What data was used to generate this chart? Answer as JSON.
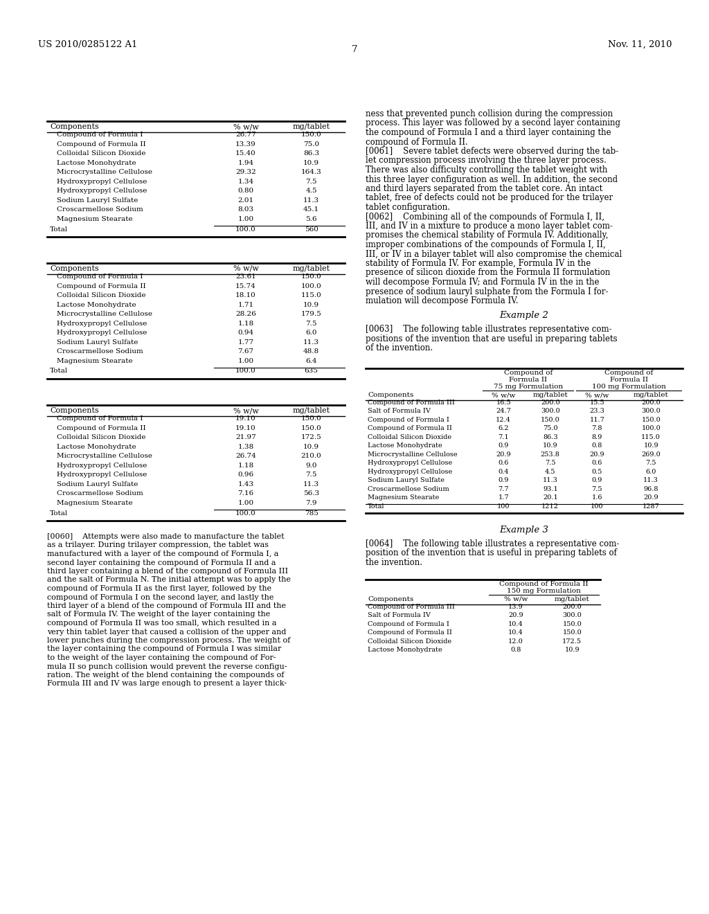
{
  "patent_number": "US 2010/0285122 A1",
  "date": "Nov. 11, 2010",
  "page_number": "7",
  "table1": {
    "headers": [
      "Components",
      "% w/w",
      "mg/tablet"
    ],
    "rows": [
      [
        "Compound of Formula I",
        "26.77",
        "150.0"
      ],
      [
        "Compound of Formula II",
        "13.39",
        "75.0"
      ],
      [
        "Colloidal Silicon Dioxide",
        "15.40",
        "86.3"
      ],
      [
        "Lactose Monohydrate",
        "1.94",
        "10.9"
      ],
      [
        "Microcrystalline Cellulose",
        "29.32",
        "164.3"
      ],
      [
        "Hydroxypropyl Cellulose",
        "1.34",
        "7.5"
      ],
      [
        "Hydroxypropyl Cellulose",
        "0.80",
        "4.5"
      ],
      [
        "Sodium Lauryl Sulfate",
        "2.01",
        "11.3"
      ],
      [
        "Croscarmellose Sodium",
        "8.03",
        "45.1"
      ],
      [
        "Magnesium Stearate",
        "1.00",
        "5.6"
      ]
    ],
    "total_row": [
      "Total",
      "100.0",
      "560"
    ]
  },
  "table2": {
    "headers": [
      "Components",
      "% w/w",
      "mg/tablet"
    ],
    "rows": [
      [
        "Compound of Formula I",
        "23.61",
        "150.0"
      ],
      [
        "Compound of Formula II",
        "15.74",
        "100.0"
      ],
      [
        "Colloidal Silicon Dioxide",
        "18.10",
        "115.0"
      ],
      [
        "Lactose Monohydrate",
        "1.71",
        "10.9"
      ],
      [
        "Microcrystalline Cellulose",
        "28.26",
        "179.5"
      ],
      [
        "Hydroxypropyl Cellulose",
        "1.18",
        "7.5"
      ],
      [
        "Hydroxypropyl Cellulose",
        "0.94",
        "6.0"
      ],
      [
        "Sodium Lauryl Sulfate",
        "1.77",
        "11.3"
      ],
      [
        "Croscarmellose Sodium",
        "7.67",
        "48.8"
      ],
      [
        "Magnesium Stearate",
        "1.00",
        "6.4"
      ]
    ],
    "total_row": [
      "Total",
      "100.0",
      "635"
    ]
  },
  "table3": {
    "headers": [
      "Components",
      "% w/w",
      "mg/tablet"
    ],
    "rows": [
      [
        "Compound of Formula I",
        "19.10",
        "150.0"
      ],
      [
        "Compound of Formula II",
        "19.10",
        "150.0"
      ],
      [
        "Colloidal Silicon Dioxide",
        "21.97",
        "172.5"
      ],
      [
        "Lactose Monohydrate",
        "1.38",
        "10.9"
      ],
      [
        "Microcrystalline Cellulose",
        "26.74",
        "210.0"
      ],
      [
        "Hydroxypropyl Cellulose",
        "1.18",
        "9.0"
      ],
      [
        "Hydroxypropyl Cellulose",
        "0.96",
        "7.5"
      ],
      [
        "Sodium Lauryl Sulfate",
        "1.43",
        "11.3"
      ],
      [
        "Croscarmellose Sodium",
        "7.16",
        "56.3"
      ],
      [
        "Magnesium Stearate",
        "1.00",
        "7.9"
      ]
    ],
    "total_row": [
      "Total",
      "100.0",
      "785"
    ]
  },
  "para60_lines": [
    "[0060]    Attempts were also made to manufacture the tablet",
    "as a trilayer. During trilayer compression, the tablet was",
    "manufactured with a layer of the compound of Formula I, a",
    "second layer containing the compound of Formula II and a",
    "third layer containing a blend of the compound of Formula III",
    "and the salt of Formula N. The initial attempt was to apply the",
    "compound of Formula II as the first layer, followed by the",
    "compound of Formula I on the second layer, and lastly the",
    "third layer of a blend of the compound of Formula III and the",
    "salt of Formula IV. The weight of the layer containing the",
    "compound of Formula II was too small, which resulted in a",
    "very thin tablet layer that caused a collision of the upper and",
    "lower punches during the compression process. The weight of",
    "the layer containing the compound of Formula I was similar",
    "to the weight of the layer containing the compound of For-",
    "mula II so punch collision would prevent the reverse configu-",
    "ration. The weight of the blend containing the compounds of",
    "Formula III and IV was large enough to present a layer thick-"
  ],
  "right_col_lines": [
    "ness that prevented punch collision during the compression",
    "process. This layer was followed by a second layer containing",
    "the compound of Formula I and a third layer containing the",
    "compound of Formula II.",
    "[0061]    Severe tablet defects were observed during the tab-",
    "let compression process involving the three layer process.",
    "There was also difficulty controlling the tablet weight with",
    "this three layer configuration as well. In addition, the second",
    "and third layers separated from the tablet core. An intact",
    "tablet, free of defects could not be produced for the trilayer",
    "tablet configuration.",
    "[0062]    Combining all of the compounds of Formula I, II,",
    "III, and IV in a mixture to produce a mono layer tablet com-",
    "promises the chemical stability of Formula IV. Additionally,",
    "improper combinations of the compounds of Formula I, II,",
    "III, or IV in a bilayer tablet will also compromise the chemical",
    "stability of Formula IV. For example, Formula IV in the",
    "presence of silicon dioxide from the Formula II formulation",
    "will decompose Formula IV; and Formula IV in the in the",
    "presence of sodium lauryl sulphate from the Formula I for-",
    "mulation will decompose Formula IV."
  ],
  "example2_title": "Example 2",
  "para63_lines": [
    "[0063]    The following table illustrates representative com-",
    "positions of the invention that are useful in preparing tablets",
    "of the invention."
  ],
  "table4": {
    "group1_header": [
      "Compound of",
      "Formula II",
      "75 mg Formulation"
    ],
    "group2_header": [
      "Compound of",
      "Formula II",
      "100 mg Formulation"
    ],
    "sub_headers": [
      "Components",
      "% w/w",
      "mg/tablet",
      "% w/w",
      "mg/tablet"
    ],
    "rows": [
      [
        "Compound of Formula III",
        "16.5",
        "200.0",
        "15.5",
        "200.0"
      ],
      [
        "Salt of Formula IV",
        "24.7",
        "300.0",
        "23.3",
        "300.0"
      ],
      [
        "Compound of Formula I",
        "12.4",
        "150.0",
        "11.7",
        "150.0"
      ],
      [
        "Compound of Formula II",
        "6.2",
        "75.0",
        "7.8",
        "100.0"
      ],
      [
        "Colloidal Silicon Dioxide",
        "7.1",
        "86.3",
        "8.9",
        "115.0"
      ],
      [
        "Lactose Monohydrate",
        "0.9",
        "10.9",
        "0.8",
        "10.9"
      ],
      [
        "Microcrystalline Cellulose",
        "20.9",
        "253.8",
        "20.9",
        "269.0"
      ],
      [
        "Hydroxypropyl Cellulose",
        "0.6",
        "7.5",
        "0.6",
        "7.5"
      ],
      [
        "Hydroxypropyl Cellulose",
        "0.4",
        "4.5",
        "0.5",
        "6.0"
      ],
      [
        "Sodium Lauryl Sulfate",
        "0.9",
        "11.3",
        "0.9",
        "11.3"
      ],
      [
        "Croscarmellose Sodium",
        "7.7",
        "93.1",
        "7.5",
        "96.8"
      ],
      [
        "Magnesium Stearate",
        "1.7",
        "20.1",
        "1.6",
        "20.9"
      ]
    ],
    "total_row": [
      "Total",
      "100",
      "1212",
      "100",
      "1287"
    ]
  },
  "example3_title": "Example 3",
  "para64_lines": [
    "[0064]    The following table illustrates a representative com-",
    "position of the invention that is useful in preparing tablets of",
    "the invention."
  ],
  "table5": {
    "group_header": [
      "Compound of Formula II",
      "150 mg Formulation"
    ],
    "sub_headers": [
      "Components",
      "% w/w",
      "mg/tablet"
    ],
    "rows": [
      [
        "Compound of Formula III",
        "13.9",
        "200.0"
      ],
      [
        "Salt of Formula IV",
        "20.9",
        "300.0"
      ],
      [
        "Compound of Formula I",
        "10.4",
        "150.0"
      ],
      [
        "Compound of Formula II",
        "10.4",
        "150.0"
      ],
      [
        "Colloidal Silicon Dioxide",
        "12.0",
        "172.5"
      ],
      [
        "Lactose Monohydrate",
        "0.8",
        "10.9"
      ]
    ]
  }
}
